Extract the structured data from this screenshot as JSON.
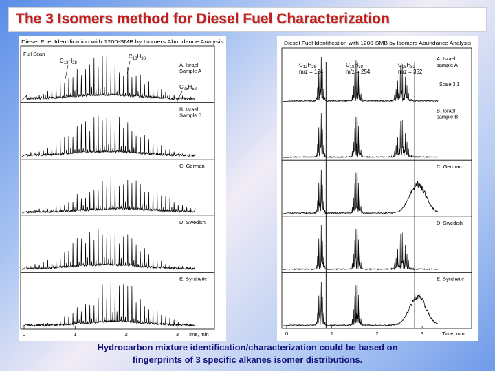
{
  "title": "The 3 Isomers method for Diesel Fuel Characterization",
  "caption": {
    "line1": "Hydrocarbon mixture identification/characterization could be based on",
    "line2": "fingerprints of 3 specific alkanes isomer distributions."
  },
  "colors": {
    "title_text": "#c81c1c",
    "caption_text": "#12127a",
    "trace": "#000000"
  },
  "chart_data": [
    {
      "type": "line",
      "title": "Diesel Fuel Identification with 1200-SMB by Isomers Abundance Analysis",
      "xlabel": "Time, min",
      "xticks": [
        "0",
        "1",
        "2",
        "3"
      ],
      "xlim": [
        0,
        3.5
      ],
      "corner_label": "Full Scan",
      "peak_labels": [
        "C13H28",
        "C18H38",
        "C25H52"
      ],
      "series": [
        {
          "name": "A. Israeli Sample A"
        },
        {
          "name": "B. Israeli Sample B"
        },
        {
          "name": "C. German"
        },
        {
          "name": "D. Swedish"
        },
        {
          "name": "E. Synthetic"
        }
      ]
    },
    {
      "type": "line",
      "title": "Diesel Fuel Identification with 1200-SMB by Isomers Abundance Analysis",
      "xlabel": "Time, min",
      "xticks": [
        "0",
        "1",
        "2",
        "3"
      ],
      "xlim": [
        0,
        3.5
      ],
      "scale_note": "Scale 3:1",
      "peak_labels": [
        {
          "formula": "C13H28",
          "mz": "m/z = 184"
        },
        {
          "formula": "C18H38",
          "mz": "m/z = 254"
        },
        {
          "formula": "C25H52",
          "mz": "m/z = 352"
        }
      ],
      "series": [
        {
          "name": "A. Israeli sample A"
        },
        {
          "name": "B. Israeli sample B"
        },
        {
          "name": "C. German"
        },
        {
          "name": "D. Swedish"
        },
        {
          "name": "E. Synthetic"
        }
      ]
    }
  ]
}
